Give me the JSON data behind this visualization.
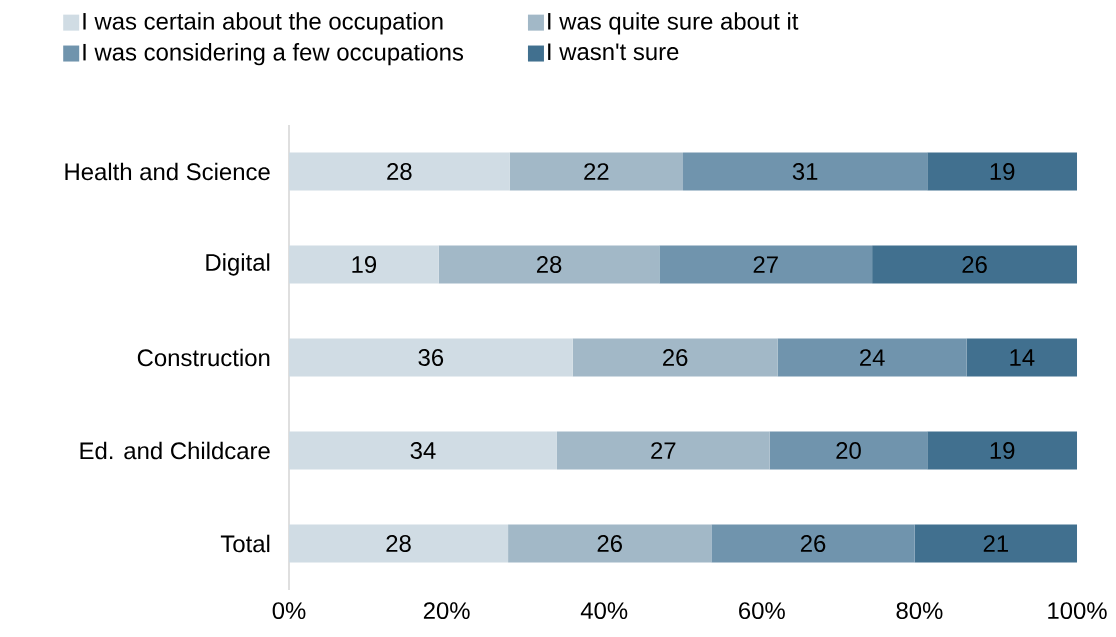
{
  "chart_data": {
    "type": "bar",
    "orientation": "horizontal",
    "stacked": true,
    "categories": [
      "Health and Science",
      "Digital",
      "Construction",
      "Ed. and Childcare",
      "Total"
    ],
    "series": [
      {
        "name": "I was certain about the occupation",
        "color": "#d0dce4",
        "values": [
          28,
          19,
          36,
          34,
          27.8
        ],
        "value_labels": [
          "28",
          "19",
          "36",
          "34",
          "28"
        ]
      },
      {
        "name": "I was quite sure about it",
        "color": "#a2b8c7",
        "values": [
          22,
          28,
          26,
          27,
          25.8
        ],
        "value_labels": [
          "22",
          "28",
          "26",
          "27",
          "26"
        ]
      },
      {
        "name": "I was considering a few occupations",
        "color": "#7094ad",
        "values": [
          31,
          27,
          24,
          20,
          25.8
        ],
        "value_labels": [
          "31",
          "27",
          "24",
          "20",
          "26"
        ]
      },
      {
        "name": "I wasn't sure",
        "color": "#41708f",
        "values": [
          19,
          26,
          14,
          19,
          20.6
        ],
        "value_labels": [
          "19",
          "26",
          "14",
          "19",
          "21"
        ]
      }
    ],
    "xlim": [
      0,
      100
    ],
    "xticks": [
      {
        "value": 0,
        "label": "0%"
      },
      {
        "value": 20,
        "label": "20%"
      },
      {
        "value": 40,
        "label": "40%"
      },
      {
        "value": 60,
        "label": "60%"
      },
      {
        "value": 80,
        "label": "80%"
      },
      {
        "value": 100,
        "label": "100%"
      }
    ],
    "legend": "top",
    "grid": false
  }
}
